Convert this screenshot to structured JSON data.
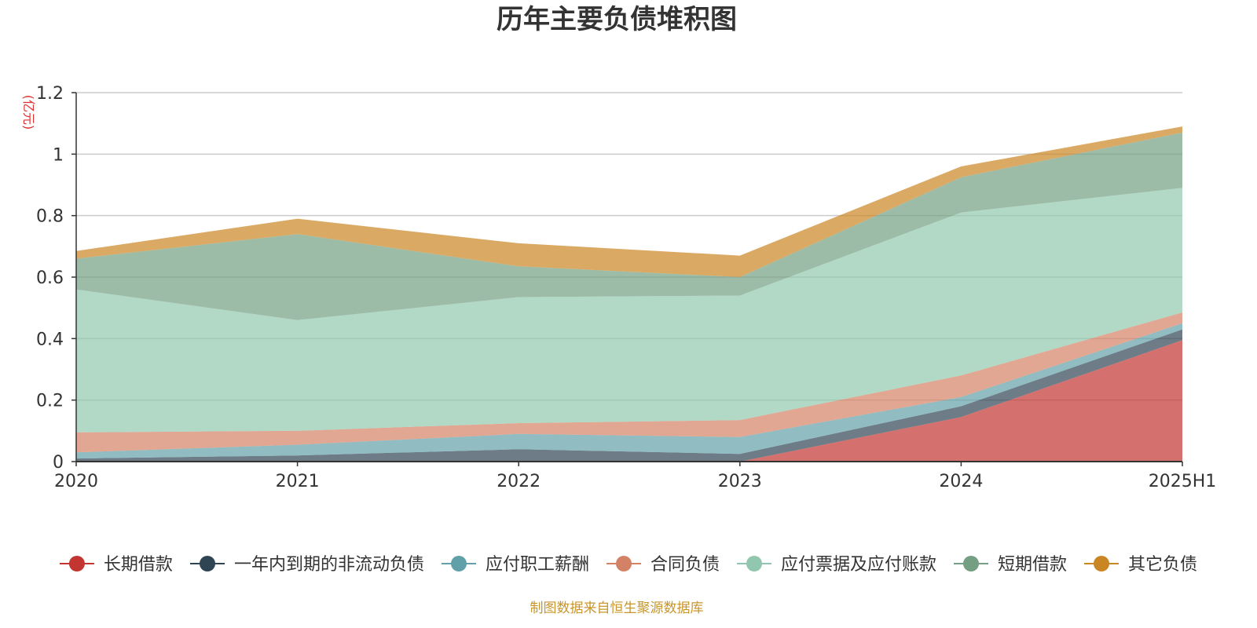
{
  "chart_data": {
    "type": "area",
    "stacked": true,
    "title": "历年主要负债堆积图",
    "unit_label": "(亿元)",
    "categories": [
      "2020",
      "2021",
      "2022",
      "2023",
      "2024",
      "2025H1"
    ],
    "ylim": [
      0,
      1.2
    ],
    "yticks": [
      "0",
      "0.2",
      "0.4",
      "0.6",
      "0.8",
      "1",
      "1.2"
    ],
    "grid": true,
    "legend_position": "bottom",
    "series": [
      {
        "name": "长期借款",
        "color": "#c23531",
        "values": [
          0,
          0,
          0,
          0,
          0.145,
          0.395
        ]
      },
      {
        "name": "一年内到期的非流动负债",
        "color": "#2f4554",
        "values": [
          0.01,
          0.02,
          0.04,
          0.025,
          0.035,
          0.035
        ]
      },
      {
        "name": "应付职工薪酬",
        "color": "#61a0a8",
        "values": [
          0.02,
          0.035,
          0.05,
          0.055,
          0.03,
          0.02
        ]
      },
      {
        "name": "合同负债",
        "color": "#d48265",
        "values": [
          0.065,
          0.045,
          0.035,
          0.055,
          0.07,
          0.035
        ]
      },
      {
        "name": "应付票据及应付账款",
        "color": "#91c7ae",
        "values": [
          0.465,
          0.36,
          0.41,
          0.405,
          0.53,
          0.405
        ]
      },
      {
        "name": "短期借款",
        "color": "#749f83",
        "values": [
          0.1,
          0.28,
          0.1,
          0.06,
          0.115,
          0.18
        ]
      },
      {
        "name": "其它负债",
        "color": "#ca8622",
        "values": [
          0.025,
          0.05,
          0.075,
          0.07,
          0.035,
          0.02
        ]
      }
    ],
    "source_note": "制图数据来自恒生聚源数据库"
  }
}
